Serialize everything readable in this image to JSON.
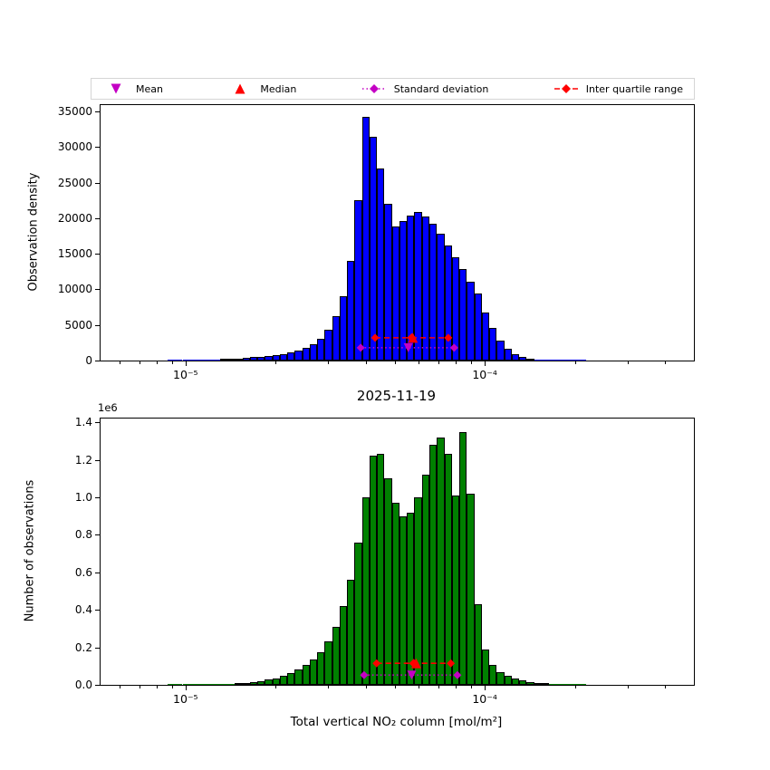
{
  "title": "2025-11-19",
  "colors": {
    "mean": "#c400c4",
    "median": "#ff0000",
    "std": "#c400c4",
    "iqr": "#ff0000",
    "bar_edge": "#000000"
  },
  "legend": {
    "items": [
      {
        "label": "Mean",
        "marker": "triangle-down",
        "color": "#c400c4"
      },
      {
        "label": "Median",
        "marker": "triangle-up",
        "color": "#ff0000"
      },
      {
        "label": "Standard deviation",
        "marker": "diamond-dotted",
        "color": "#c400c4"
      },
      {
        "label": "Inter quartile range",
        "marker": "diamond-dashed",
        "color": "#ff0000"
      }
    ]
  },
  "chart_data": [
    {
      "type": "bar",
      "ylabel": "Observation density",
      "xscale": "log",
      "xlim": [
        5.2e-06,
        0.0005
      ],
      "ylim": [
        0,
        35900
      ],
      "bar_color": "#0000ff",
      "xticks": [
        {
          "value": 1e-05,
          "label": "10⁻⁵"
        },
        {
          "value": 0.0001,
          "label": "10⁻⁴"
        }
      ],
      "yticks": [
        {
          "value": 0,
          "label": "0"
        },
        {
          "value": 5000,
          "label": "5000"
        },
        {
          "value": 10000,
          "label": "10000"
        },
        {
          "value": 15000,
          "label": "15000"
        },
        {
          "value": 20000,
          "label": "20000"
        },
        {
          "value": 25000,
          "label": "25000"
        },
        {
          "value": 30000,
          "label": "30000"
        },
        {
          "value": 35000,
          "label": "35000"
        }
      ],
      "bins": {
        "log10_start": -5.06,
        "log10_width": 0.025,
        "count": 56
      },
      "values": [
        40,
        55,
        70,
        90,
        110,
        140,
        170,
        210,
        260,
        320,
        390,
        470,
        560,
        670,
        800,
        950,
        1150,
        1400,
        1750,
        2300,
        3100,
        4300,
        6200,
        9000,
        14000,
        22500,
        34200,
        31500,
        27000,
        22000,
        18900,
        19600,
        20400,
        20900,
        20300,
        19200,
        17800,
        16200,
        14500,
        12800,
        11100,
        9400,
        6800,
        4600,
        2800,
        1600,
        900,
        520,
        300,
        170,
        95,
        55,
        30,
        17,
        10,
        5
      ],
      "stats": {
        "mean": 5.55e-05,
        "median": 5.75e-05,
        "std_range": [
          3.85e-05,
          7.9e-05
        ],
        "iqr_range": [
          4.3e-05,
          7.55e-05
        ],
        "std_y": 1800,
        "iqr_y": 3200
      }
    },
    {
      "type": "bar",
      "title": "2025-11-19",
      "ylabel": "Number of observations",
      "xlabel": "Total vertical NO₂ column [mol/m²]",
      "offset_label": "1e6",
      "xscale": "log",
      "xlim": [
        5.2e-06,
        0.0005
      ],
      "ylim": [
        0,
        1420000
      ],
      "bar_color": "#008000",
      "xticks": [
        {
          "value": 1e-05,
          "label": "10⁻⁵"
        },
        {
          "value": 0.0001,
          "label": "10⁻⁴"
        }
      ],
      "yticks": [
        {
          "value": 0,
          "label": "0.0"
        },
        {
          "value": 200000,
          "label": "0.2"
        },
        {
          "value": 400000,
          "label": "0.4"
        },
        {
          "value": 600000,
          "label": "0.6"
        },
        {
          "value": 800000,
          "label": "0.8"
        },
        {
          "value": 1000000,
          "label": "1.0"
        },
        {
          "value": 1200000,
          "label": "1.2"
        },
        {
          "value": 1400000,
          "label": "1.4"
        }
      ],
      "bins": {
        "log10_start": -5.06,
        "log10_width": 0.025,
        "count": 56
      },
      "values": [
        800,
        1000,
        1300,
        1700,
        2200,
        2800,
        3600,
        4700,
        6200,
        8200,
        11000,
        15000,
        20000,
        27000,
        36000,
        48000,
        63000,
        82000,
        105000,
        135000,
        175000,
        230000,
        310000,
        420000,
        560000,
        760000,
        1000000,
        1220000,
        1230000,
        1100000,
        970000,
        900000,
        920000,
        1000000,
        1120000,
        1280000,
        1320000,
        1230000,
        1010000,
        1350000,
        1020000,
        430000,
        190000,
        105000,
        68000,
        46000,
        32000,
        23000,
        16500,
        11500,
        8000,
        5600,
        3900,
        2700,
        1800,
        1200
      ],
      "stats": {
        "mean": 5.7e-05,
        "median": 5.9e-05,
        "std_range": [
          3.95e-05,
          8.1e-05
        ],
        "iqr_range": [
          4.35e-05,
          7.7e-05
        ],
        "std_y": 52000,
        "iqr_y": 115000
      }
    }
  ]
}
